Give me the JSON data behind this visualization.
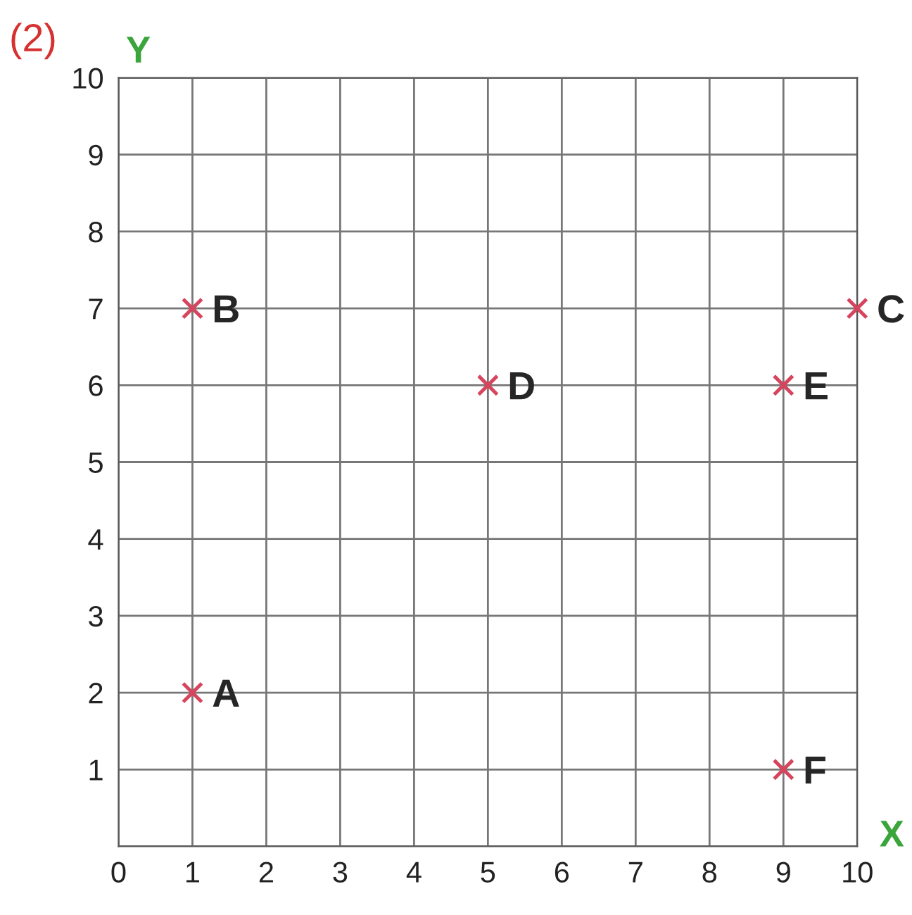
{
  "chart_data": {
    "type": "scatter",
    "xlabel": "X",
    "ylabel": "Y",
    "x": [
      1,
      1,
      10,
      5,
      9,
      9
    ],
    "series": [
      {
        "color": "#d6455d",
        "values": [
          2,
          7,
          7,
          6,
          6,
          1
        ]
      }
    ],
    "marker": "cross",
    "grid": true,
    "legend": false,
    "xlim": [
      0,
      10
    ],
    "ylim": [
      0,
      10
    ],
    "xticks": [
      0,
      1,
      2,
      3,
      4,
      5,
      6,
      7,
      8,
      9,
      10
    ],
    "yticks": [
      {
        "value": 0,
        "label": null
      },
      1,
      2,
      3,
      4,
      5,
      6,
      7,
      8,
      9,
      10
    ],
    "annotations": [
      {
        "text": "A",
        "x": 1,
        "y": 2
      },
      {
        "text": "B",
        "x": 1,
        "y": 7
      },
      {
        "text": "C",
        "x": 10,
        "y": 7
      },
      {
        "text": "D",
        "x": 5,
        "y": 6
      },
      {
        "text": "E",
        "x": 9,
        "y": 6
      },
      {
        "text": "F",
        "x": 9,
        "y": 1
      },
      "(2)"
    ]
  }
}
